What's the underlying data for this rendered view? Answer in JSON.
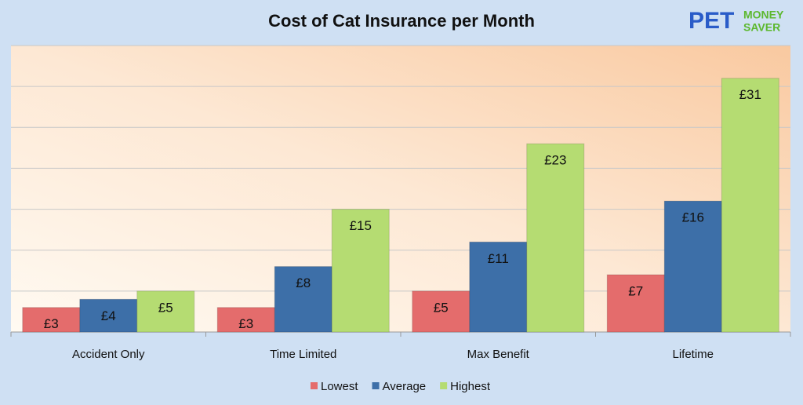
{
  "chart_data": {
    "type": "bar",
    "title": "Cost of Cat Insurance per Month",
    "logo": {
      "pet": "PET",
      "money": "MONEY",
      "saver": "SAVER"
    },
    "categories": [
      "Accident Only",
      "Time Limited",
      "Max Benefit",
      "Lifetime"
    ],
    "series": [
      {
        "name": "Lowest",
        "color": "#e46c6c",
        "values": [
          3,
          3,
          5,
          7
        ],
        "value_labels": [
          "£3",
          "£3",
          "£5",
          "£7"
        ]
      },
      {
        "name": "Average",
        "color": "#3d6fa8",
        "values": [
          4,
          8,
          11,
          16
        ],
        "value_labels": [
          "£4",
          "£8",
          "£11",
          "£16"
        ]
      },
      {
        "name": "Highest",
        "color": "#b5dc72",
        "values": [
          5,
          15,
          23,
          31
        ],
        "value_labels": [
          "£5",
          "£15",
          "£23",
          "£31"
        ]
      }
    ],
    "ylim": [
      0,
      35
    ],
    "yticks": [
      0,
      5,
      10,
      15,
      20,
      25,
      30,
      35
    ],
    "grid": true,
    "legend": "bottom"
  }
}
